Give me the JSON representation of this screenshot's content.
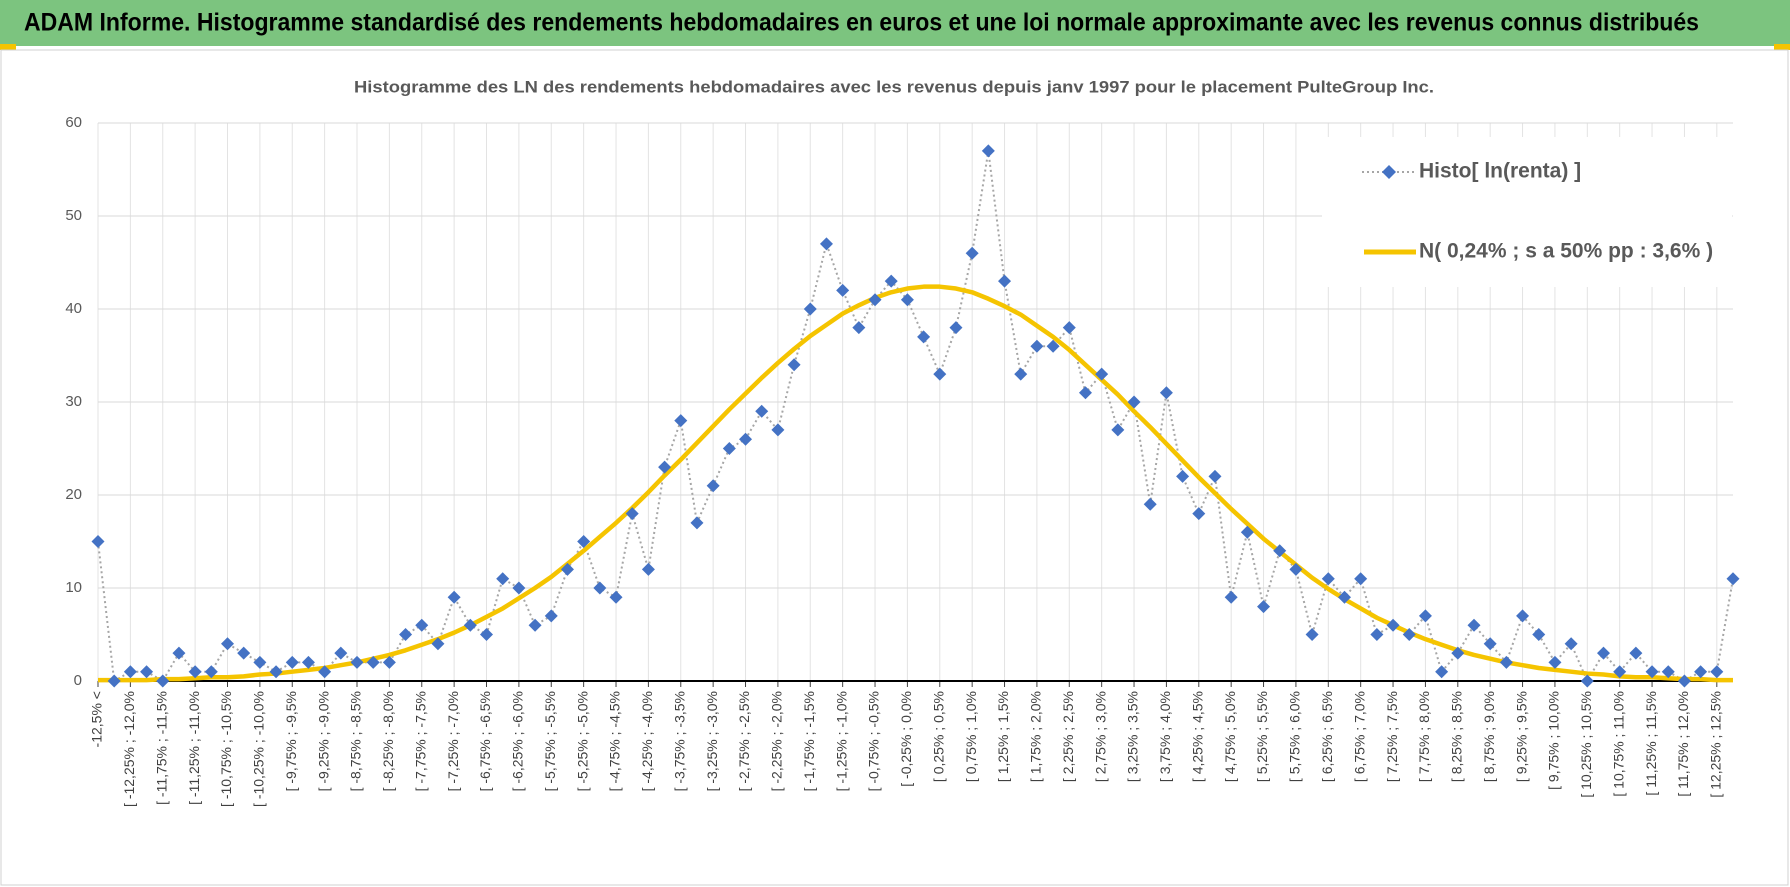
{
  "header": {
    "title": "ADAM Informe. Histogramme standardisé des rendements hebdomadaires en euros et une loi normale approximante avec les revenus connus distribués"
  },
  "chart_data": {
    "type": "line",
    "title": "Histogramme  des LN des rendements hebdomadaires avec les revenus depuis janv 1997 pour le placement PulteGroup Inc.",
    "categories": [
      "-12,5% <",
      null,
      "[ -12,25% ; -12,0%",
      null,
      "[ -11,75% ; -11,5%",
      null,
      "[ -11,25% ; -11,0%",
      null,
      "[ -10,75% ; -10,5%",
      null,
      "[ -10,25% ; -10,0%",
      null,
      "[ -9,75% ; -9,5%",
      null,
      "[ -9,25% ; -9,0%",
      null,
      "[ -8,75% ; -8,5%",
      null,
      "[ -8,25% ; -8,0%",
      null,
      "[ -7,75% ; -7,5%",
      null,
      "[ -7,25% ; -7,0%",
      null,
      "[ -6,75% ; -6,5%",
      null,
      "[ -6,25% ; -6,0%",
      null,
      "[ -5,75% ; -5,5%",
      null,
      "[ -5,25% ; -5,0%",
      null,
      "[ -4,75% ; -4,5%",
      null,
      "[ -4,25% ; -4,0%",
      null,
      "[ -3,75% ; -3,5%",
      null,
      "[ -3,25% ; -3,0%",
      null,
      "[ -2,75% ; -2,5%",
      null,
      "[ -2,25% ; -2,0%",
      null,
      "[ -1,75% ; -1,5%",
      null,
      "[ -1,25% ; -1,0%",
      null,
      "[ -0,75% ; -0,5%",
      null,
      "[ -0,25% ; 0,0%",
      null,
      "[ 0,25% ; 0,5%",
      null,
      "[ 0,75% ; 1,0%",
      null,
      "[ 1,25% ; 1,5%",
      null,
      "[ 1,75% ; 2,0%",
      null,
      "[ 2,25% ; 2,5%",
      null,
      "[ 2,75% ; 3,0%",
      null,
      "[ 3,25% ; 3,5%",
      null,
      "[ 3,75% ; 4,0%",
      null,
      "[ 4,25% ; 4,5%",
      null,
      "[ 4,75% ; 5,0%",
      null,
      "[ 5,25% ; 5,5%",
      null,
      "[ 5,75% ; 6,0%",
      null,
      "[ 6,25% ; 6,5%",
      null,
      "[ 6,75% ; 7,0%",
      null,
      "[ 7,25% ; 7,5%",
      null,
      "[ 7,75% ; 8,0%",
      null,
      "[ 8,25% ; 8,5%",
      null,
      "[ 8,75% ; 9,0%",
      null,
      "[ 9,25% ; 9,5%",
      null,
      "[ 9,75% ; 10,0%",
      null,
      "[ 10,25% ; 10,5%",
      null,
      "[ 10,75% ; 11,0%",
      null,
      "[ 11,25% ; 11,5%",
      null,
      "[ 11,75% ; 12,0%",
      null,
      "[ 12,25% ; 12,5%",
      null
    ],
    "series": [
      {
        "name": "Histo[ ln(renta) ]",
        "color": "#4472c4",
        "marker": "diamond",
        "line_color": "#a6a6a6",
        "line_style": "dotted",
        "values": [
          15,
          0,
          1,
          1,
          0,
          3,
          1,
          1,
          4,
          3,
          2,
          1,
          2,
          2,
          1,
          3,
          2,
          2,
          2,
          5,
          6,
          4,
          9,
          6,
          5,
          11,
          10,
          6,
          7,
          12,
          15,
          10,
          9,
          18,
          12,
          23,
          28,
          17,
          21,
          25,
          26,
          29,
          27,
          34,
          40,
          47,
          42,
          38,
          41,
          43,
          41,
          37,
          33,
          38,
          46,
          57,
          43,
          33,
          36,
          36,
          38,
          31,
          33,
          27,
          30,
          19,
          31,
          22,
          18,
          22,
          9,
          16,
          8,
          14,
          12,
          5,
          11,
          9,
          11,
          5,
          6,
          5,
          7,
          1,
          3,
          6,
          4,
          2,
          7,
          5,
          2,
          4,
          0,
          3,
          1,
          3,
          1,
          1,
          0,
          1,
          1,
          11
        ]
      },
      {
        "name": "N( 0,24% ; s a 50% pp : 3,6% )",
        "color": "#f5c400",
        "marker": null,
        "line_style": "solid",
        "values": [
          0.1,
          0.1,
          0.1,
          0.1,
          0.2,
          0.2,
          0.3,
          0.4,
          0.4,
          0.5,
          0.7,
          0.8,
          1.0,
          1.2,
          1.4,
          1.7,
          2.0,
          2.4,
          2.8,
          3.3,
          3.9,
          4.5,
          5.2,
          6.0,
          6.9,
          7.8,
          8.9,
          10.0,
          11.2,
          12.6,
          14.0,
          15.5,
          17.0,
          18.6,
          20.3,
          22.1,
          23.8,
          25.6,
          27.4,
          29.2,
          30.9,
          32.6,
          34.2,
          35.7,
          37.1,
          38.3,
          39.5,
          40.4,
          41.2,
          41.8,
          42.2,
          42.4,
          42.4,
          42.2,
          41.8,
          41.1,
          40.3,
          39.4,
          38.2,
          37.0,
          35.6,
          34.0,
          32.4,
          30.8,
          29.0,
          27.3,
          25.5,
          23.7,
          21.9,
          20.2,
          18.5,
          16.9,
          15.3,
          13.9,
          12.5,
          11.1,
          9.9,
          8.8,
          7.8,
          6.8,
          6.0,
          5.2,
          4.5,
          3.9,
          3.3,
          2.8,
          2.4,
          2.0,
          1.7,
          1.4,
          1.2,
          1.0,
          0.8,
          0.7,
          0.5,
          0.4,
          0.4,
          0.3,
          0.2,
          0.2,
          0.1,
          0.1
        ]
      }
    ],
    "ylim": [
      0,
      60
    ],
    "yticks": [
      0,
      10,
      20,
      30,
      40,
      50,
      60
    ],
    "grid": true,
    "legend": "upper right"
  }
}
